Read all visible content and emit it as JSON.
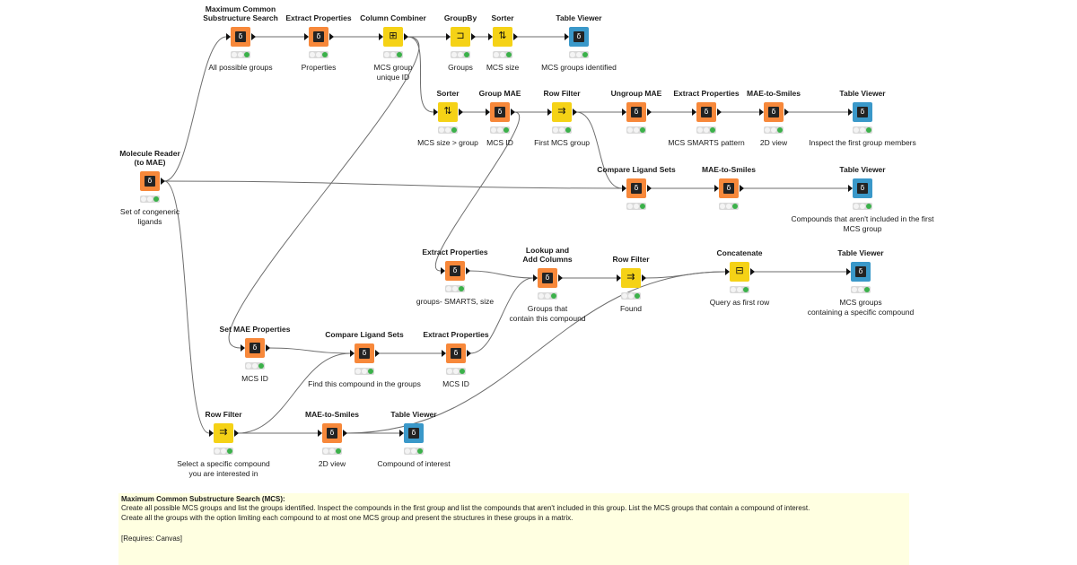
{
  "workflow": {
    "nodes": [
      {
        "id": "molreader",
        "title": "Molecule Reader\n(to MAE)",
        "label": "Set of congeneric\nligands",
        "type": "learner",
        "icon": "reader-icon",
        "glyph": "δ"
      },
      {
        "id": "mcs",
        "title": "Maximum Common\nSubstructure Search",
        "label": "All possible groups",
        "type": "learner",
        "icon": "schrodinger-icon",
        "glyph": "δ"
      },
      {
        "id": "extract1",
        "title": "Extract Properties",
        "label": "Properties",
        "type": "learner",
        "icon": "schrodinger-icon",
        "glyph": "δ"
      },
      {
        "id": "colcomb",
        "title": "Column Combiner",
        "label": "MCS group\nunique ID",
        "type": "manipulator",
        "icon": "column-combiner-icon",
        "glyph": "⊞"
      },
      {
        "id": "groupby",
        "title": "GroupBy",
        "label": "Groups",
        "type": "manipulator",
        "icon": "groupby-icon",
        "glyph": "⊐"
      },
      {
        "id": "sorter1",
        "title": "Sorter",
        "label": "MCS size",
        "type": "manipulator",
        "icon": "sort-icon",
        "glyph": "⇅"
      },
      {
        "id": "tv1",
        "title": "Table Viewer",
        "label": "MCS groups identified",
        "type": "view",
        "icon": "table-viewer-icon",
        "glyph": "δ"
      },
      {
        "id": "sorter2",
        "title": "Sorter",
        "label": "MCS size > group",
        "type": "manipulator",
        "icon": "sort-icon",
        "glyph": "⇅"
      },
      {
        "id": "groupmae",
        "title": "Group MAE",
        "label": "MCS ID",
        "type": "learner",
        "icon": "schrodinger-icon",
        "glyph": "δ"
      },
      {
        "id": "rowfilter1",
        "title": "Row Filter",
        "label": "First MCS group",
        "type": "manipulator",
        "icon": "row-filter-icon",
        "glyph": "⇉"
      },
      {
        "id": "ungroup",
        "title": "Ungroup MAE",
        "label": "",
        "type": "learner",
        "icon": "schrodinger-icon",
        "glyph": "δ"
      },
      {
        "id": "extract2",
        "title": "Extract Properties",
        "label": "MCS SMARTS pattern",
        "type": "learner",
        "icon": "schrodinger-icon",
        "glyph": "δ"
      },
      {
        "id": "mae2smi1",
        "title": "MAE-to-Smiles",
        "label": "2D view",
        "type": "learner",
        "icon": "schrodinger-icon",
        "glyph": "δ"
      },
      {
        "id": "tv2",
        "title": "Table Viewer",
        "label": "Inspect the first group members",
        "type": "view",
        "icon": "table-viewer-icon",
        "glyph": "δ"
      },
      {
        "id": "cls1",
        "title": "Compare Ligand Sets",
        "label": "",
        "type": "learner",
        "icon": "schrodinger-icon",
        "glyph": "δ"
      },
      {
        "id": "mae2smi2",
        "title": "MAE-to-Smiles",
        "label": "",
        "type": "learner",
        "icon": "schrodinger-icon",
        "glyph": "δ"
      },
      {
        "id": "tv3",
        "title": "Table Viewer",
        "label": "Compounds that aren't included in the first MCS group",
        "type": "view",
        "icon": "table-viewer-icon",
        "glyph": "δ"
      },
      {
        "id": "extract3",
        "title": "Extract Properties",
        "label": "groups- SMARTS, size",
        "type": "learner",
        "icon": "schrodinger-icon",
        "glyph": "δ"
      },
      {
        "id": "lookup",
        "title": "Lookup and\nAdd Columns",
        "label": "Groups that\ncontain this compound",
        "type": "learner",
        "icon": "schrodinger-icon",
        "glyph": "δ"
      },
      {
        "id": "rowfilter2",
        "title": "Row Filter",
        "label": "Found",
        "type": "manipulator",
        "icon": "row-filter-icon",
        "glyph": "⇉"
      },
      {
        "id": "concat",
        "title": "Concatenate",
        "label": "Query as first row",
        "type": "manipulator",
        "icon": "concatenate-icon",
        "glyph": "⊟"
      },
      {
        "id": "tv4",
        "title": "Table Viewer",
        "label": "MCS groups\ncontaining a specific compound",
        "type": "view",
        "icon": "table-viewer-icon",
        "glyph": "δ"
      },
      {
        "id": "setmae",
        "title": "Set MAE Properties",
        "label": "MCS ID",
        "type": "learner",
        "icon": "schrodinger-icon",
        "glyph": "δ"
      },
      {
        "id": "cls2",
        "title": "Compare Ligand Sets",
        "label": "Find this compound in the groups",
        "type": "learner",
        "icon": "schrodinger-icon",
        "glyph": "δ"
      },
      {
        "id": "extract4",
        "title": "Extract Properties",
        "label": "MCS ID",
        "type": "learner",
        "icon": "schrodinger-icon",
        "glyph": "δ"
      },
      {
        "id": "rowfilter3",
        "title": "Row Filter",
        "label": "Select a specific compound\nyou are interested in",
        "type": "manipulator",
        "icon": "row-filter-icon",
        "glyph": "⇉"
      },
      {
        "id": "mae2smi3",
        "title": "MAE-to-Smiles",
        "label": "2D view",
        "type": "learner",
        "icon": "schrodinger-icon",
        "glyph": "δ"
      },
      {
        "id": "tv5",
        "title": "Table Viewer",
        "label": "Compound of interest",
        "type": "view",
        "icon": "table-viewer-icon",
        "glyph": "δ"
      }
    ],
    "connections": [
      [
        "molreader",
        "mcs"
      ],
      [
        "mcs",
        "extract1"
      ],
      [
        "extract1",
        "colcomb"
      ],
      [
        "colcomb",
        "groupby"
      ],
      [
        "groupby",
        "sorter1"
      ],
      [
        "sorter1",
        "tv1"
      ],
      [
        "colcomb",
        "sorter2"
      ],
      [
        "sorter2",
        "groupmae"
      ],
      [
        "groupmae",
        "rowfilter1"
      ],
      [
        "rowfilter1",
        "ungroup"
      ],
      [
        "ungroup",
        "extract2"
      ],
      [
        "extract2",
        "mae2smi1"
      ],
      [
        "mae2smi1",
        "tv2"
      ],
      [
        "molreader",
        "cls1"
      ],
      [
        "rowfilter1",
        "cls1"
      ],
      [
        "cls1",
        "mae2smi2"
      ],
      [
        "mae2smi2",
        "tv3"
      ],
      [
        "groupmae",
        "extract3"
      ],
      [
        "extract3",
        "lookup"
      ],
      [
        "lookup",
        "rowfilter2"
      ],
      [
        "rowfilter2",
        "concat"
      ],
      [
        "concat",
        "tv4"
      ],
      [
        "colcomb",
        "setmae"
      ],
      [
        "setmae",
        "cls2"
      ],
      [
        "cls2",
        "extract4"
      ],
      [
        "extract4",
        "lookup"
      ],
      [
        "molreader",
        "rowfilter3"
      ],
      [
        "rowfilter3",
        "cls2"
      ],
      [
        "rowfilter3",
        "mae2smi3"
      ],
      [
        "mae2smi3",
        "tv5"
      ],
      [
        "mae2smi3",
        "concat"
      ]
    ]
  },
  "annotation": {
    "title": "Maximum Common Substructure Search (MCS):",
    "body": "Create all possible MCS groups and list the groups identified. Inspect the compounds in the first group and list the compounds that aren't included in this group. List the MCS groups that contain a compound of interest.\nCreate all the groups with the option limiting each compound to at most one MCS group and present the structures in these groups in a matrix.",
    "requires": "[Requires: Canvas]"
  }
}
